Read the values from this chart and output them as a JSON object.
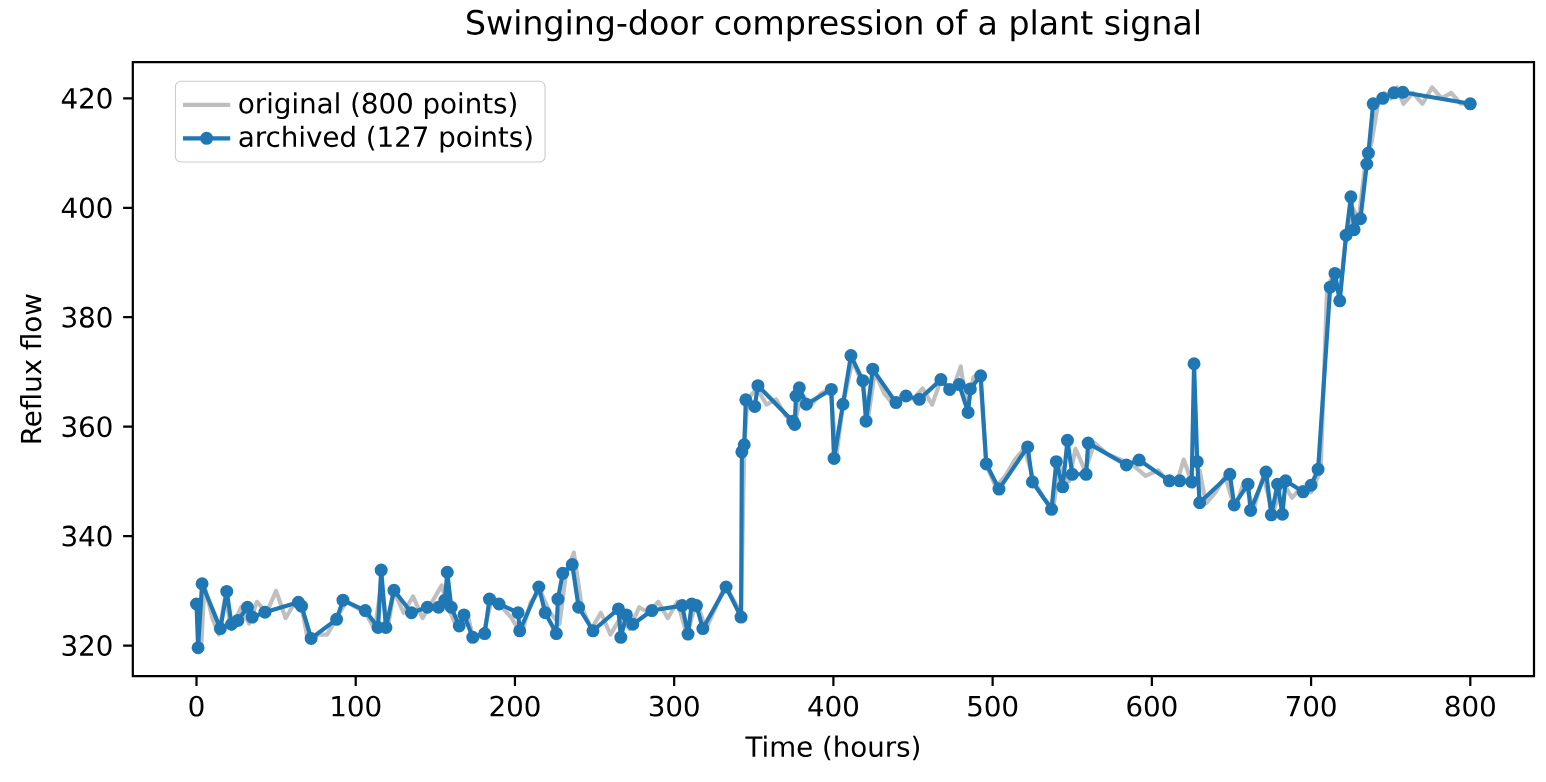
{
  "chart_data": {
    "type": "line",
    "title": "Swinging-door compression of a plant signal",
    "xlabel": "Time (hours)",
    "ylabel": "Reflux flow",
    "xlim": [
      -40,
      840
    ],
    "ylim": [
      314.4,
      426.6
    ],
    "xticks": [
      0,
      100,
      200,
      300,
      400,
      500,
      600,
      700,
      800
    ],
    "yticks": [
      320,
      340,
      360,
      380,
      400,
      420
    ],
    "legend": "top left",
    "series": [
      {
        "name": "original (800 points)",
        "color": "#bfbfbf",
        "marker": "none",
        "x": [
          0,
          3,
          5,
          10,
          14,
          18,
          22,
          28,
          33,
          38,
          44,
          50,
          56,
          62,
          66,
          70,
          76,
          82,
          88,
          94,
          100,
          106,
          112,
          116,
          120,
          124,
          130,
          136,
          142,
          148,
          154,
          158,
          164,
          170,
          174,
          180,
          186,
          192,
          198,
          204,
          210,
          216,
          222,
          228,
          232,
          237,
          242,
          248,
          254,
          260,
          266,
          272,
          278,
          284,
          290,
          296,
          302,
          308,
          314,
          320,
          326,
          332,
          338,
          342,
          344,
          346,
          352,
          358,
          364,
          370,
          376,
          380,
          386,
          392,
          398,
          402,
          406,
          412,
          418,
          422,
          426,
          432,
          438,
          444,
          450,
          456,
          462,
          468,
          474,
          480,
          484,
          488,
          492,
          496,
          502,
          508,
          514,
          520,
          526,
          532,
          538,
          542,
          548,
          552,
          558,
          564,
          572,
          580,
          588,
          596,
          604,
          610,
          616,
          620,
          626,
          630,
          634,
          640,
          646,
          652,
          658,
          664,
          670,
          676,
          682,
          688,
          694,
          700,
          706,
          710,
          714,
          718,
          722,
          726,
          730,
          734,
          738,
          742,
          746,
          750,
          754,
          758,
          764,
          770,
          776,
          782,
          788,
          794,
          800
        ],
        "values": [
          327,
          320,
          331,
          325,
          322,
          329,
          323,
          327,
          324,
          328,
          326,
          330,
          325,
          328,
          327,
          321,
          322,
          322,
          325,
          328,
          327,
          326,
          323,
          331,
          323,
          330,
          326,
          329,
          325,
          328,
          331,
          327,
          323,
          326,
          321,
          322,
          329,
          327,
          325,
          322,
          328,
          330,
          326,
          324,
          333,
          337,
          327,
          323,
          326,
          322,
          325,
          323,
          327,
          326,
          328,
          325,
          328,
          322,
          328,
          323,
          327,
          331,
          328,
          326,
          356,
          365,
          367,
          364,
          365,
          362,
          361,
          366,
          364,
          366,
          367,
          355,
          364,
          372,
          368,
          362,
          370,
          366,
          364,
          366,
          365,
          367,
          364,
          369,
          366,
          371,
          363,
          369,
          370,
          353,
          349,
          351,
          354,
          356,
          350,
          347,
          345,
          353,
          350,
          356,
          352,
          357,
          355,
          354,
          353,
          351,
          352,
          350,
          350,
          354,
          349,
          352,
          346,
          348,
          351,
          345,
          350,
          345,
          351,
          344,
          350,
          347,
          349,
          348,
          352,
          385,
          388,
          384,
          395,
          400,
          398,
          408,
          412,
          419,
          421,
          420,
          422,
          419,
          421,
          419,
          422,
          420,
          421,
          419,
          419
        ]
      },
      {
        "name": "archived (127 points)",
        "color": "#1f77b4",
        "marker": "circle",
        "x": [
          0,
          1,
          3.5,
          15,
          19,
          22,
          26,
          32,
          35,
          43,
          64,
          66,
          72,
          88,
          92,
          106,
          114,
          116,
          119,
          124,
          135,
          145,
          152,
          156,
          157.5,
          160,
          165,
          168,
          173.5,
          181,
          184,
          190,
          202,
          203,
          215,
          219,
          226,
          227,
          230,
          236,
          240,
          249,
          265,
          266.5,
          270,
          274,
          286,
          305,
          308.7,
          311,
          314,
          318,
          332.6,
          342,
          342.5,
          344,
          345,
          350.6,
          352.6,
          374.5,
          375.7,
          376.5,
          378.6,
          383,
          398.7,
          400.4,
          406,
          411,
          418.5,
          420.5,
          424.7,
          439.3,
          445.6,
          454,
          467.5,
          473,
          479,
          484.6,
          486,
          492.5,
          496,
          504,
          522,
          525,
          537,
          540,
          544,
          547,
          550,
          558.7,
          560,
          584,
          592,
          611,
          617.5,
          625,
          626.5,
          628.5,
          630,
          649,
          651.7,
          660.4,
          662,
          671.7,
          675,
          679,
          682,
          684,
          695,
          700,
          704.4,
          712,
          715,
          718,
          722,
          725,
          727,
          731,
          735,
          736,
          739,
          745,
          752,
          757.6,
          800
        ],
        "values": [
          327.6,
          319.6,
          331.3,
          323.1,
          329.9,
          323.9,
          324.6,
          327,
          325.2,
          326.1,
          327.9,
          327.2,
          321.3,
          324.8,
          328.3,
          326.4,
          323.3,
          333.8,
          323.3,
          330.1,
          326,
          327,
          327,
          328.3,
          333.4,
          327,
          323.6,
          325.6,
          321.5,
          322.2,
          328.5,
          327.6,
          326,
          322.7,
          330.7,
          326,
          322.2,
          328.5,
          333.2,
          334.8,
          327,
          322.7,
          326.7,
          321.5,
          325.6,
          323.9,
          326.4,
          327.3,
          322.1,
          327.6,
          327.3,
          323.1,
          330.7,
          325.2,
          355.4,
          356.7,
          364.9,
          363.7,
          367.5,
          361,
          360.4,
          365.6,
          367.1,
          364.1,
          366.8,
          354.2,
          364.1,
          373,
          368.4,
          361,
          370.5,
          364.4,
          365.6,
          365,
          368.6,
          366.8,
          367.7,
          362.6,
          366.9,
          369.3,
          353.2,
          348.6,
          356.3,
          349.9,
          344.9,
          353.6,
          349,
          357.5,
          351.3,
          351.3,
          357,
          353,
          353.9,
          350.1,
          350.1,
          349.9,
          371.5,
          353.6,
          346.1,
          351.3,
          345.7,
          349.5,
          344.7,
          351.7,
          343.9,
          349.5,
          344,
          350.1,
          348.1,
          349.3,
          352.2,
          385.5,
          388,
          383,
          395,
          402,
          396,
          398,
          408,
          410,
          419,
          420,
          421,
          421.1,
          419
        ]
      }
    ]
  }
}
